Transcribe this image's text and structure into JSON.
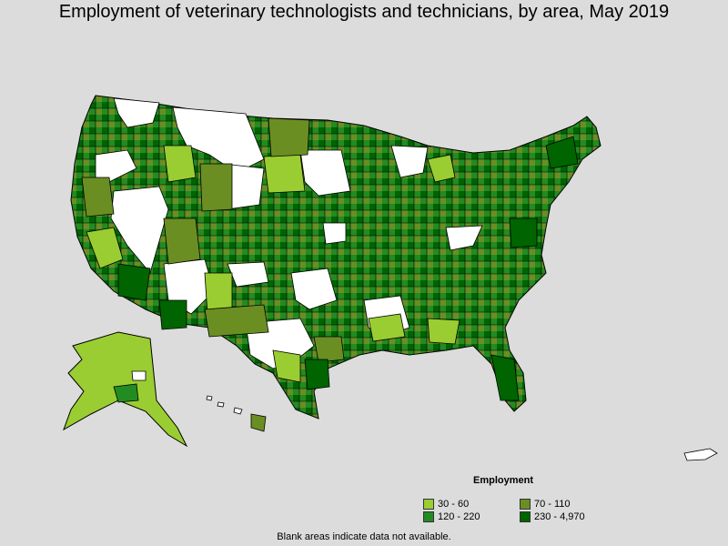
{
  "title": "Employment of veterinary technologists and technicians, by area, May 2019",
  "legend": {
    "title": "Employment",
    "items": [
      {
        "label": "30 - 60",
        "color": "#9acd32"
      },
      {
        "label": "70 - 110",
        "color": "#6b8e23"
      },
      {
        "label": "120 - 220",
        "color": "#228b22"
      },
      {
        "label": "230 - 4,970",
        "color": "#006400"
      }
    ]
  },
  "note": "Blank areas indicate data not available.",
  "colors": {
    "background": "#dcdcdc",
    "no_data": "#ffffff",
    "border": "#000000"
  }
}
